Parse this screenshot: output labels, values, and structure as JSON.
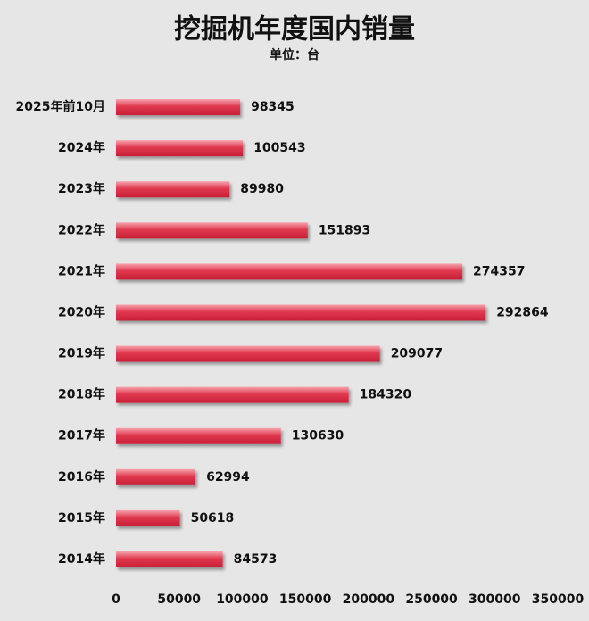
{
  "chart_data": {
    "type": "bar",
    "orientation": "horizontal",
    "title": "挖掘机年度国内销量",
    "subtitle": "单位：台",
    "categories": [
      "2025年前10月",
      "2024年",
      "2023年",
      "2022年",
      "2021年",
      "2020年",
      "2019年",
      "2018年",
      "2017年",
      "2016年",
      "2015年",
      "2014年"
    ],
    "values": [
      98345,
      100543,
      89980,
      151893,
      274357,
      292864,
      209077,
      184320,
      130630,
      62994,
      50618,
      84573
    ],
    "color": "#e0394f",
    "xlim": [
      0,
      350000
    ],
    "xticks": [
      0,
      50000,
      100000,
      150000,
      200000,
      250000,
      300000,
      350000
    ],
    "grid": false
  }
}
